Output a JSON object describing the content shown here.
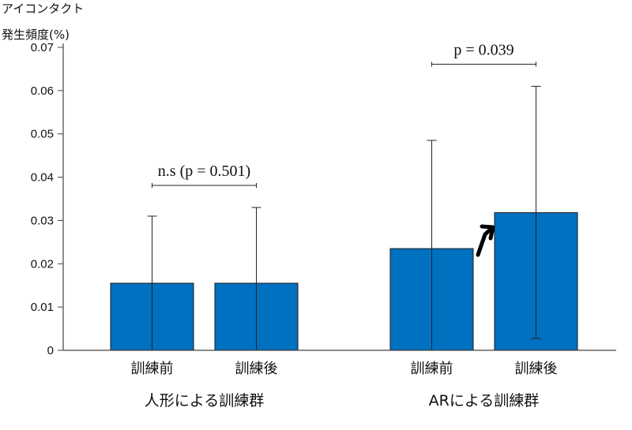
{
  "chart_data": {
    "type": "bar",
    "ylabel_lines": [
      "アイコンタクト",
      "発生頻度(%)"
    ],
    "ylim": [
      0,
      0.07
    ],
    "yticks": [
      "0",
      "0.01",
      "0.02",
      "0.03",
      "0.04",
      "0.05",
      "0.06",
      "0.07"
    ],
    "bar_color": "#0070C0",
    "groups": [
      {
        "label": "人形による訓練群",
        "annotation": "n.s (p = 0.501)",
        "bars": [
          {
            "category": "訓練前",
            "value": 0.0155,
            "err_low": 0.0,
            "err_high": 0.031
          },
          {
            "category": "訓練後",
            "value": 0.0155,
            "err_low": 0.0,
            "err_high": 0.033
          }
        ]
      },
      {
        "label": "ARによる訓練群",
        "annotation": "p = 0.039",
        "arrow": true,
        "bars": [
          {
            "category": "訓練前",
            "value": 0.0235,
            "err_low": 0.0,
            "err_high": 0.0485
          },
          {
            "category": "訓練後",
            "value": 0.0318,
            "err_low": 0.0027,
            "err_high": 0.061
          }
        ]
      }
    ]
  }
}
